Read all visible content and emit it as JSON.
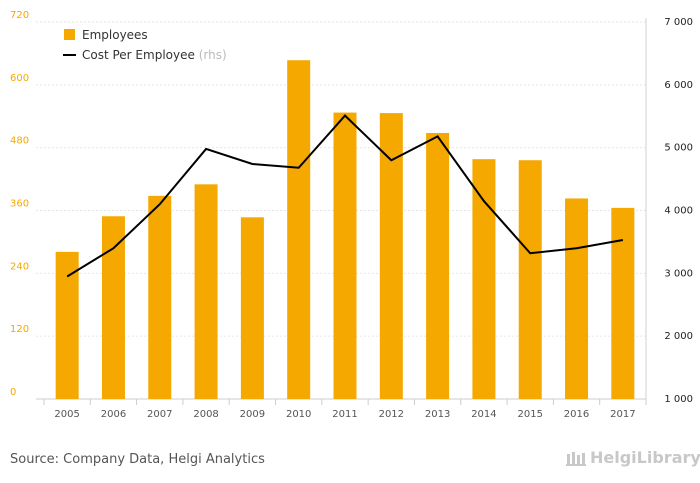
{
  "chart_data": {
    "type": "bar",
    "categories": [
      "2005",
      "2006",
      "2007",
      "2008",
      "2009",
      "2010",
      "2011",
      "2012",
      "2013",
      "2014",
      "2015",
      "2016",
      "2017"
    ],
    "series": [
      {
        "name": "Employees",
        "type": "bar",
        "axis": "left",
        "color": "#f5a800",
        "values": [
          281,
          349,
          388,
          410,
          347,
          647,
          547,
          546,
          508,
          458,
          456,
          383,
          365
        ]
      },
      {
        "name": "Cost Per Employee",
        "type": "line",
        "axis": "right",
        "color": "#000000",
        "values": [
          2950,
          3400,
          4100,
          4980,
          4740,
          4680,
          5510,
          4800,
          5180,
          4150,
          3320,
          3400,
          3530
        ]
      }
    ],
    "left_axis": {
      "ylim": [
        0,
        720
      ],
      "ticks": [
        "0",
        "120",
        "240",
        "360",
        "480",
        "600",
        "720"
      ]
    },
    "right_axis": {
      "ylim": [
        1000,
        7000
      ],
      "ticks": [
        "1 000",
        "2 000",
        "3 000",
        "4 000",
        "5 000",
        "6 000",
        "7 000"
      ]
    },
    "legend": {
      "position": "top-left",
      "items": [
        {
          "label": "Employees",
          "hint": ""
        },
        {
          "label": "Cost Per Employee",
          "hint": "(rhs)"
        }
      ]
    },
    "grid": true
  },
  "footer": {
    "source": "Source: Company Data, Helgi Analytics",
    "brand": "HelgiLibrary"
  }
}
